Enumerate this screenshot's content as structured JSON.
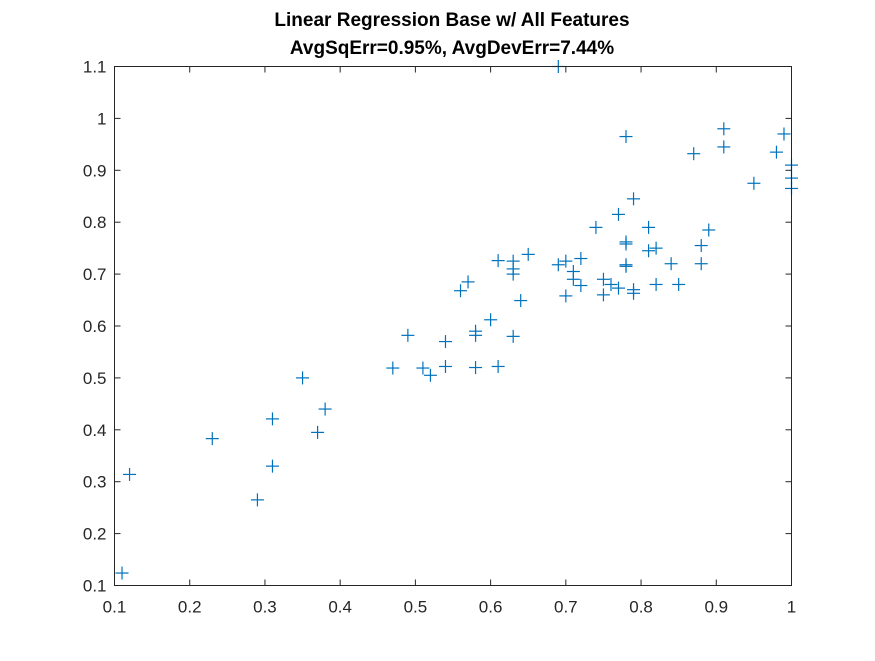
{
  "chart_data": {
    "type": "scatter",
    "title": "Linear Regression Base w/ All Features",
    "subtitle": "AvgSqErr=0.95%, AvgDevErr=7.44%",
    "xlabel": "",
    "ylabel": "",
    "xlim": [
      0.1,
      1.0
    ],
    "ylim": [
      0.1,
      1.1
    ],
    "xticks": [
      "0.1",
      "0.2",
      "0.3",
      "0.4",
      "0.5",
      "0.6",
      "0.7",
      "0.8",
      "0.9",
      "1"
    ],
    "yticks": [
      "0.1",
      "0.2",
      "0.3",
      "0.4",
      "0.5",
      "0.6",
      "0.7",
      "0.8",
      "0.9",
      "1",
      "1.1"
    ],
    "grid": false,
    "legend": "none",
    "marker": "+",
    "color": "#0072BD",
    "points": [
      [
        0.11,
        0.124
      ],
      [
        0.12,
        0.314
      ],
      [
        0.23,
        0.383
      ],
      [
        0.29,
        0.265
      ],
      [
        0.31,
        0.33
      ],
      [
        0.31,
        0.421
      ],
      [
        0.35,
        0.5
      ],
      [
        0.37,
        0.395
      ],
      [
        0.38,
        0.44
      ],
      [
        0.47,
        0.519
      ],
      [
        0.49,
        0.582
      ],
      [
        0.51,
        0.519
      ],
      [
        0.52,
        0.505
      ],
      [
        0.54,
        0.522
      ],
      [
        0.54,
        0.57
      ],
      [
        0.56,
        0.668
      ],
      [
        0.57,
        0.685
      ],
      [
        0.58,
        0.582
      ],
      [
        0.58,
        0.59
      ],
      [
        0.58,
        0.52
      ],
      [
        0.6,
        0.612
      ],
      [
        0.61,
        0.522
      ],
      [
        0.61,
        0.726
      ],
      [
        0.63,
        0.725
      ],
      [
        0.63,
        0.71
      ],
      [
        0.63,
        0.7
      ],
      [
        0.63,
        0.58
      ],
      [
        0.64,
        0.649
      ],
      [
        0.65,
        0.738
      ],
      [
        0.69,
        1.1
      ],
      [
        0.69,
        0.718
      ],
      [
        0.7,
        0.725
      ],
      [
        0.7,
        0.658
      ],
      [
        0.71,
        0.705
      ],
      [
        0.71,
        0.69
      ],
      [
        0.72,
        0.73
      ],
      [
        0.72,
        0.678
      ],
      [
        0.74,
        0.79
      ],
      [
        0.75,
        0.69
      ],
      [
        0.75,
        0.66
      ],
      [
        0.76,
        0.68
      ],
      [
        0.77,
        0.673
      ],
      [
        0.77,
        0.815
      ],
      [
        0.78,
        0.965
      ],
      [
        0.78,
        0.762
      ],
      [
        0.78,
        0.758
      ],
      [
        0.78,
        0.718
      ],
      [
        0.78,
        0.715
      ],
      [
        0.79,
        0.845
      ],
      [
        0.79,
        0.67
      ],
      [
        0.79,
        0.663
      ],
      [
        0.81,
        0.79
      ],
      [
        0.81,
        0.745
      ],
      [
        0.82,
        0.75
      ],
      [
        0.82,
        0.68
      ],
      [
        0.84,
        0.72
      ],
      [
        0.85,
        0.68
      ],
      [
        0.87,
        0.932
      ],
      [
        0.88,
        0.755
      ],
      [
        0.88,
        0.72
      ],
      [
        0.89,
        0.785
      ],
      [
        0.91,
        0.98
      ],
      [
        0.91,
        0.945
      ],
      [
        0.95,
        0.875
      ],
      [
        0.98,
        0.935
      ],
      [
        0.99,
        0.97
      ],
      [
        1.0,
        0.91
      ],
      [
        1.0,
        0.885
      ],
      [
        1.0,
        0.865
      ]
    ]
  }
}
